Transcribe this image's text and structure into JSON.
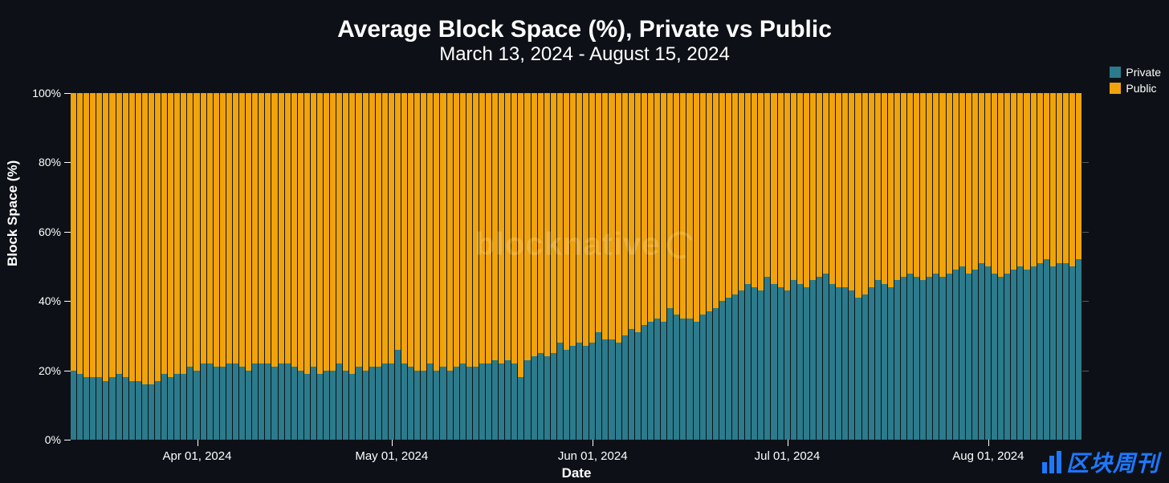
{
  "chart": {
    "type": "stacked-bar-100",
    "title": "Average Block Space (%), Private vs Public",
    "title_fontsize": 30,
    "title_color": "#ffffff",
    "subtitle": "March 13, 2024 - August 15, 2024",
    "subtitle_fontsize": 24,
    "subtitle_color": "#ffffff",
    "background_color": "#0d1117",
    "x_label": "Date",
    "y_label": "Block Space (%)",
    "label_fontsize": 17,
    "ylim": [
      0,
      100
    ],
    "ytick_step": 20,
    "y_ticks": [
      "0%",
      "20%",
      "40%",
      "60%",
      "80%",
      "100%"
    ],
    "x_ticks": [
      {
        "label": "Apr 01, 2024",
        "index": 19
      },
      {
        "label": "May 01, 2024",
        "index": 49
      },
      {
        "label": "Jun 01, 2024",
        "index": 80
      },
      {
        "label": "Jul 01, 2024",
        "index": 110
      },
      {
        "label": "Aug 01, 2024",
        "index": 141
      }
    ],
    "series_colors": {
      "private": "#2b7b8c",
      "public": "#f0a30a"
    },
    "bar_border_color": "#0d1117",
    "grid_tick_color": "#5a5a5a",
    "legend": [
      {
        "label": "Private",
        "color": "#2b7b8c"
      },
      {
        "label": "Public",
        "color": "#f0a30a"
      }
    ],
    "private_values": [
      20,
      19,
      18,
      18,
      18,
      17,
      18,
      19,
      18,
      17,
      17,
      16,
      16,
      17,
      19,
      18,
      19,
      19,
      21,
      20,
      22,
      22,
      21,
      21,
      22,
      22,
      21,
      20,
      22,
      22,
      22,
      21,
      22,
      22,
      21,
      20,
      19,
      21,
      19,
      20,
      20,
      22,
      20,
      19,
      21,
      20,
      21,
      21,
      22,
      22,
      26,
      22,
      21,
      20,
      20,
      22,
      20,
      21,
      20,
      21,
      22,
      21,
      21,
      22,
      22,
      23,
      22,
      23,
      22,
      18,
      23,
      24,
      25,
      24,
      25,
      28,
      26,
      27,
      28,
      27,
      28,
      31,
      29,
      29,
      28,
      30,
      32,
      31,
      33,
      34,
      35,
      34,
      38,
      36,
      35,
      35,
      34,
      36,
      37,
      38,
      40,
      41,
      42,
      43,
      45,
      44,
      43,
      47,
      45,
      44,
      43,
      46,
      45,
      44,
      46,
      47,
      48,
      45,
      44,
      44,
      43,
      41,
      42,
      44,
      46,
      45,
      44,
      46,
      47,
      48,
      47,
      46,
      47,
      48,
      47,
      48,
      49,
      50,
      48,
      49,
      51,
      50,
      48,
      47,
      48,
      49,
      50,
      49,
      50,
      51,
      52,
      50,
      51,
      51,
      50,
      52
    ],
    "watermark": "blocknative",
    "footer_brand": "区块周刊"
  }
}
